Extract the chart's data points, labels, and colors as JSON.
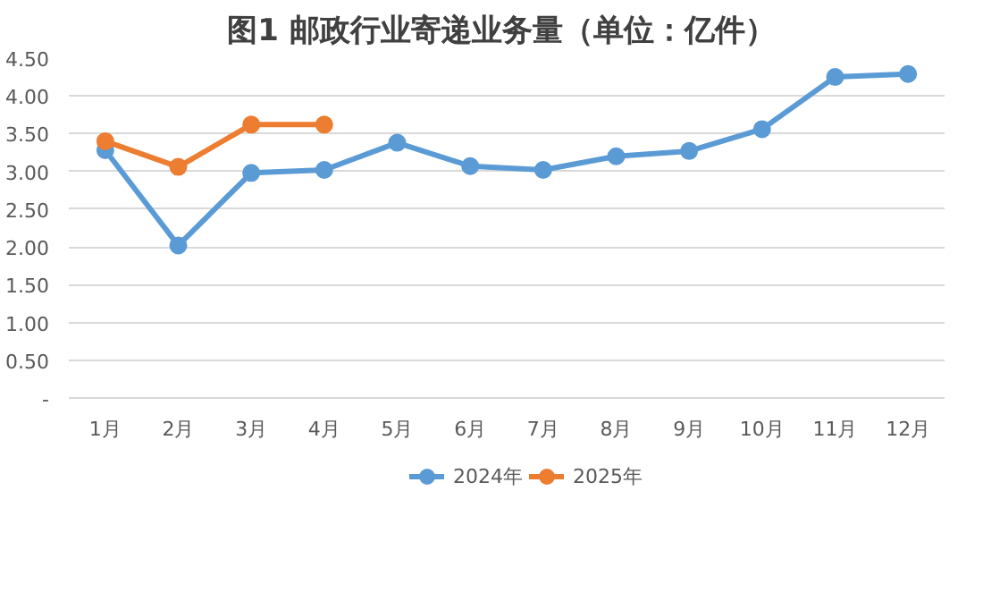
{
  "chart_data": {
    "type": "line",
    "title": "图1  邮政行业寄递业务量（单位：亿件）",
    "categories": [
      "1月",
      "2月",
      "3月",
      "4月",
      "5月",
      "6月",
      "7月",
      "8月",
      "9月",
      "10月",
      "11月",
      "12月"
    ],
    "series": [
      {
        "name": "2024年",
        "color": "#5b9bd5",
        "values": [
          3.28,
          2.02,
          2.98,
          3.02,
          3.38,
          3.07,
          3.02,
          3.2,
          3.27,
          3.56,
          4.25,
          4.29
        ]
      },
      {
        "name": "2025年",
        "color": "#ed7d31",
        "values": [
          3.4,
          3.06,
          3.62,
          3.62,
          null,
          null,
          null,
          null,
          null,
          null,
          null,
          null
        ]
      }
    ],
    "ylim": [
      0,
      4.5
    ],
    "yticks": [
      {
        "value": 0,
        "label": "-"
      },
      {
        "value": 0.5,
        "label": "0.50"
      },
      {
        "value": 1,
        "label": "1.00"
      },
      {
        "value": 1.5,
        "label": "1.50"
      },
      {
        "value": 2,
        "label": "2.00"
      },
      {
        "value": 2.5,
        "label": "2.50"
      },
      {
        "value": 3,
        "label": "3.00"
      },
      {
        "value": 3.5,
        "label": "3.50"
      },
      {
        "value": 4,
        "label": "4.00"
      },
      {
        "value": 4.5,
        "label": "4.50"
      }
    ],
    "grid": "y",
    "legend": "bottom",
    "marker": "circle",
    "line_style": "solid"
  }
}
